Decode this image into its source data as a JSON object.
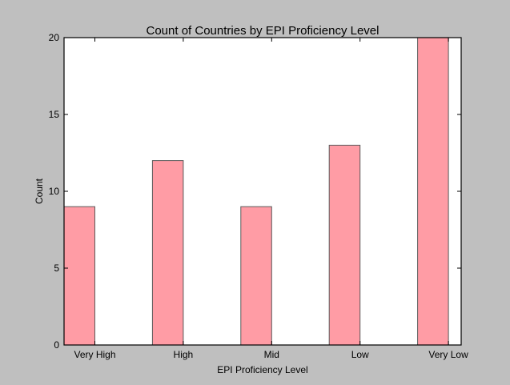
{
  "chart_data": {
    "type": "bar",
    "title": "Count of Countries by EPI Proficiency Level",
    "xlabel": "EPI Proficiency Level",
    "ylabel": "Count",
    "categories": [
      "Very High",
      "High",
      "Mid",
      "Low",
      "Very Low"
    ],
    "values": [
      9,
      12,
      9,
      13,
      20
    ],
    "ylim": [
      0,
      20
    ],
    "yticks": [
      0,
      5,
      10,
      15,
      20
    ],
    "grid": false,
    "legend": "none",
    "colors": {
      "bar_fill": "#ff9ca5",
      "bar_edge": "#5a5a5a",
      "plot_background": "#ffffff",
      "figure_background": "#bfbfbf"
    }
  }
}
